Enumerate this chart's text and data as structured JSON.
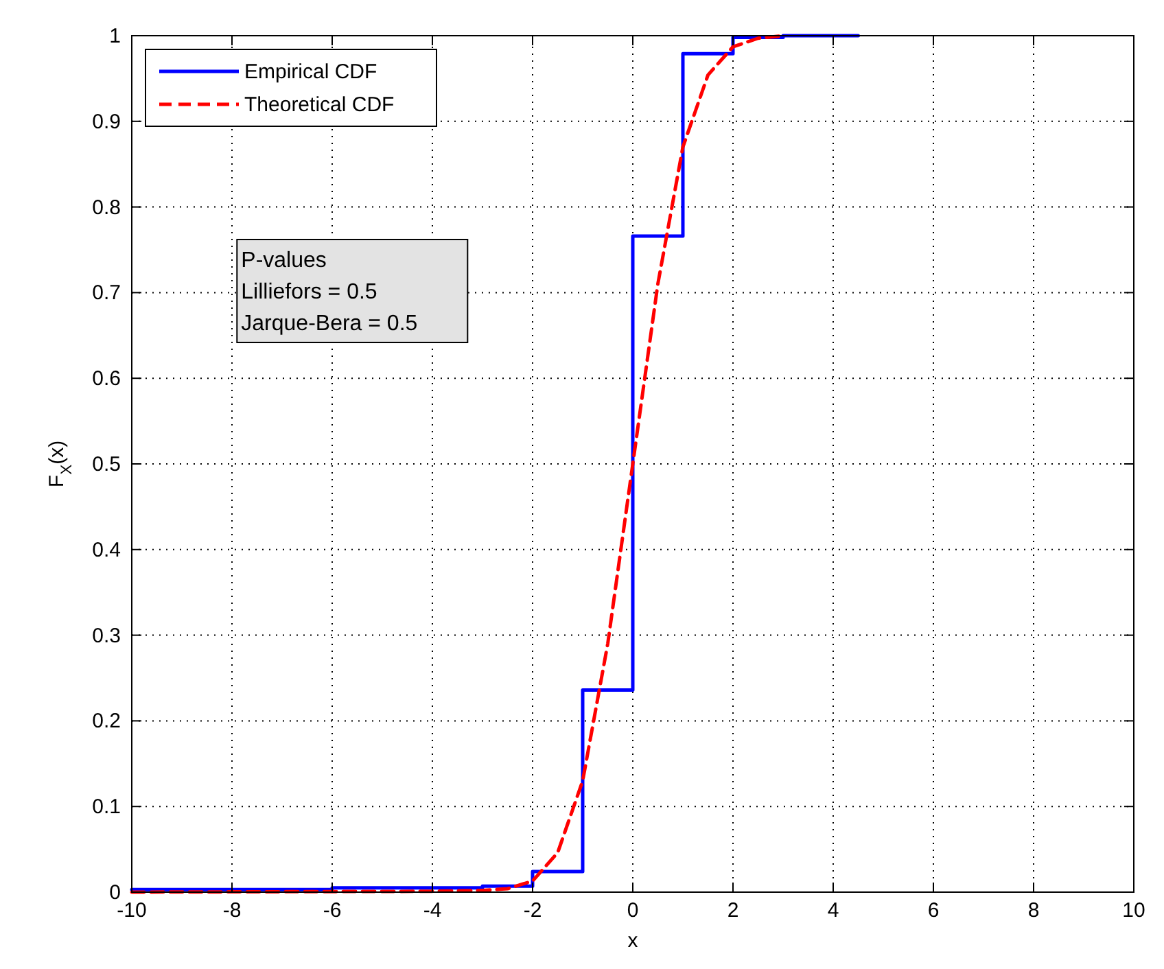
{
  "chart_data": {
    "type": "step",
    "xlabel": "x",
    "ylabel": "F$_{X}$(x)",
    "xlim": [
      -10,
      10
    ],
    "xticks": [
      -10,
      -8,
      -6,
      -4,
      -2,
      0,
      2,
      4,
      6,
      8,
      10
    ],
    "ylim": [
      0,
      1
    ],
    "yticks": [
      0,
      0.1,
      0.2,
      0.3,
      0.4,
      0.5,
      0.6,
      0.7,
      0.8,
      0.9,
      1
    ],
    "grid": true,
    "legend": "top left",
    "series": [
      {
        "name": "Empirical CDF",
        "color": "#0000ff",
        "line_style": "solid",
        "x": [
          -10,
          -6,
          -3,
          -2,
          -1,
          0,
          1,
          2,
          3,
          4.5
        ],
        "values": [
          0.003,
          0.005,
          0.007,
          0.024,
          0.236,
          0.766,
          0.979,
          0.998,
          1,
          1
        ]
      },
      {
        "name": "Theoretical CDF",
        "type": "line",
        "color": "#ff0000",
        "line_style": "dashed",
        "x": [
          -10,
          -4,
          -3,
          -2.5,
          -2,
          -1.5,
          -1,
          -0.5,
          0,
          0.5,
          1,
          1.5,
          2,
          2.5,
          3
        ],
        "values": [
          0,
          0.001,
          0.002,
          0.004,
          0.013,
          0.046,
          0.13,
          0.29,
          0.5,
          0.71,
          0.87,
          0.954,
          0.987,
          0.997,
          1
        ]
      }
    ],
    "annotations": [
      "P-values",
      "Lilliefors = 0.5",
      "Jarque-Bera = 0.5"
    ]
  }
}
